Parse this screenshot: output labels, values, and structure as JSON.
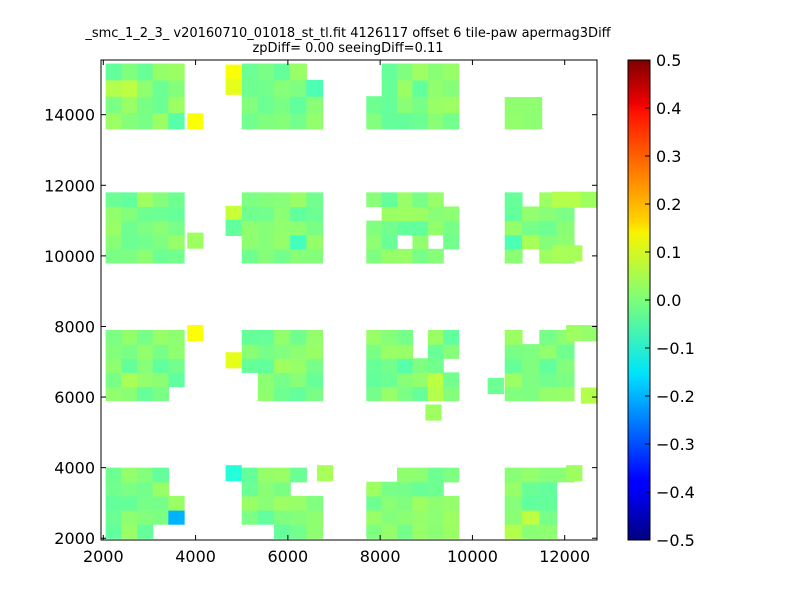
{
  "chart_data": {
    "type": "heatmap",
    "title_line1": "_smc_1_2_3_ v20160710_01018_st_tl.fit 4126117 offset 6 tile-paw apermag3Diff",
    "title_line2": "zpDiff= 0.00 seeingDiff=0.11",
    "xlabel": "",
    "ylabel": "",
    "xlim": [
      1950,
      12700
    ],
    "ylim": [
      1950,
      15550
    ],
    "xticks": [
      2000,
      4000,
      6000,
      8000,
      10000,
      12000
    ],
    "yticks": [
      2000,
      4000,
      6000,
      8000,
      10000,
      12000,
      14000
    ],
    "grid": false,
    "colorbar": {
      "min": -0.5,
      "max": 0.5,
      "ticks": [
        "0.5",
        "0.4",
        "0.3",
        "0.2",
        "0.1",
        "0.0",
        "−0.1",
        "−0.2",
        "−0.3",
        "−0.4",
        "−0.5"
      ],
      "colormap": "jet"
    },
    "cell_size": [
      340,
      440
    ],
    "default_value": 0.0,
    "blocks": [
      {
        "x": [
          2050,
          3750
        ],
        "y": [
          2000,
          4000
        ]
      },
      {
        "x": [
          5000,
          6750
        ],
        "y": [
          2000,
          4000
        ]
      },
      {
        "x": [
          7700,
          9700
        ],
        "y": [
          2000,
          4000
        ]
      },
      {
        "x": [
          10700,
          12200
        ],
        "y": [
          2000,
          4000
        ]
      },
      {
        "x": [
          2050,
          3750
        ],
        "y": [
          5900,
          7900
        ]
      },
      {
        "x": [
          5000,
          6750
        ],
        "y": [
          5900,
          7900
        ]
      },
      {
        "x": [
          7700,
          9700
        ],
        "y": [
          5900,
          7900
        ]
      },
      {
        "x": [
          10700,
          12200
        ],
        "y": [
          5900,
          7900
        ]
      },
      {
        "x": [
          2050,
          3750
        ],
        "y": [
          9800,
          11800
        ]
      },
      {
        "x": [
          5000,
          6750
        ],
        "y": [
          9800,
          11800
        ]
      },
      {
        "x": [
          7700,
          9700
        ],
        "y": [
          9800,
          11800
        ]
      },
      {
        "x": [
          10700,
          12200
        ],
        "y": [
          9800,
          11800
        ]
      },
      {
        "x": [
          2050,
          3750
        ],
        "y": [
          13600,
          15450
        ]
      },
      {
        "x": [
          5000,
          6750
        ],
        "y": [
          13600,
          15450
        ]
      },
      {
        "x": [
          7700,
          9700
        ],
        "y": [
          13600,
          15450
        ]
      },
      {
        "x": [
          10700,
          11500
        ],
        "y": [
          13600,
          14500
        ]
      }
    ],
    "extra_cells": [
      {
        "x": 3990,
        "y": 13820,
        "v": 0.12
      },
      {
        "x": 4820,
        "y": 15200,
        "v": 0.12
      },
      {
        "x": 4820,
        "y": 14800,
        "v": 0.1
      },
      {
        "x": 4820,
        "y": 11200,
        "v": 0.07
      },
      {
        "x": 4820,
        "y": 10800,
        "v": -0.03
      },
      {
        "x": 3990,
        "y": 10440,
        "v": 0.03
      },
      {
        "x": 3990,
        "y": 7820,
        "v": 0.12
      },
      {
        "x": 4820,
        "y": 7050,
        "v": 0.1
      },
      {
        "x": 9150,
        "y": 5570,
        "v": 0.03
      },
      {
        "x": 10500,
        "y": 6320,
        "v": -0.02
      },
      {
        "x": 12520,
        "y": 6050,
        "v": 0.05
      },
      {
        "x": 12200,
        "y": 11600,
        "v": 0.05
      },
      {
        "x": 11900,
        "y": 10080,
        "v": 0.04
      },
      {
        "x": 12200,
        "y": 10080,
        "v": 0.04
      },
      {
        "x": 12520,
        "y": 11600,
        "v": 0.03
      },
      {
        "x": 11900,
        "y": 11600,
        "v": 0.05
      },
      {
        "x": 12200,
        "y": 7820,
        "v": 0.03
      },
      {
        "x": 12520,
        "y": 7820,
        "v": 0.02
      },
      {
        "x": 4820,
        "y": 3850,
        "v": -0.09
      },
      {
        "x": 6800,
        "y": 3850,
        "v": 0.04
      },
      {
        "x": 12200,
        "y": 3850,
        "v": 0.03
      }
    ],
    "highlights": [
      {
        "x": 3650,
        "y": 2630,
        "v": -0.2
      },
      {
        "x": 9850,
        "y": 2150,
        "v": 0.12
      },
      {
        "x": 6850,
        "y": 15000,
        "v": 0.13
      },
      {
        "x": 6550,
        "y": 14580,
        "v": -0.05
      },
      {
        "x": 9850,
        "y": 15350,
        "v": 0.08
      },
      {
        "x": 9850,
        "y": 3850,
        "v": 0.09
      },
      {
        "x": 6900,
        "y": 11650,
        "v": -0.07
      },
      {
        "x": 6150,
        "y": 10400,
        "v": -0.06
      },
      {
        "x": 11150,
        "y": 10400,
        "v": 0.04
      },
      {
        "x": 11450,
        "y": 3000,
        "v": 0.07
      },
      {
        "x": 11150,
        "y": 2630,
        "v": 0.06
      },
      {
        "x": 10850,
        "y": 2150,
        "v": 0.05
      },
      {
        "x": 10850,
        "y": 10400,
        "v": -0.05
      },
      {
        "x": 2550,
        "y": 14800,
        "v": 0.06
      },
      {
        "x": 2250,
        "y": 14800,
        "v": 0.05
      },
      {
        "x": 3550,
        "y": 13820,
        "v": -0.04
      },
      {
        "x": 2550,
        "y": 6500,
        "v": 0.04
      },
      {
        "x": 9300,
        "y": 6500,
        "v": 0.06
      },
      {
        "x": 9300,
        "y": 6050,
        "v": 0.05
      },
      {
        "x": 8500,
        "y": 7050,
        "v": -0.04
      },
      {
        "x": 3550,
        "y": 6050,
        "v": -0.04
      }
    ],
    "holes": [
      {
        "x": 6850,
        "y": 14580
      },
      {
        "x": 6850,
        "y": 15350
      },
      {
        "x": 6550,
        "y": 15350
      },
      {
        "x": 8000,
        "y": 14580
      },
      {
        "x": 8000,
        "y": 15000
      },
      {
        "x": 9250,
        "y": 10400
      },
      {
        "x": 8600,
        "y": 10400
      },
      {
        "x": 9450,
        "y": 10080
      },
      {
        "x": 9550,
        "y": 11650
      },
      {
        "x": 7900,
        "y": 11150
      },
      {
        "x": 11150,
        "y": 11600
      },
      {
        "x": 11450,
        "y": 11600
      },
      {
        "x": 11450,
        "y": 11150
      },
      {
        "x": 11450,
        "y": 10700
      },
      {
        "x": 11150,
        "y": 10080
      },
      {
        "x": 8850,
        "y": 7650
      },
      {
        "x": 8850,
        "y": 7200
      },
      {
        "x": 9550,
        "y": 7050
      },
      {
        "x": 11150,
        "y": 7650
      },
      {
        "x": 11450,
        "y": 7650
      },
      {
        "x": 5150,
        "y": 6050
      },
      {
        "x": 5150,
        "y": 6500
      },
      {
        "x": 3750,
        "y": 6050
      },
      {
        "x": 6500,
        "y": 3850
      },
      {
        "x": 6500,
        "y": 3450
      },
      {
        "x": 6300,
        "y": 3450
      },
      {
        "x": 8000,
        "y": 3850
      },
      {
        "x": 8300,
        "y": 3850
      },
      {
        "x": 9550,
        "y": 3450
      },
      {
        "x": 3150,
        "y": 2150
      },
      {
        "x": 3450,
        "y": 2150
      },
      {
        "x": 3750,
        "y": 3850
      },
      {
        "x": 3750,
        "y": 3450
      },
      {
        "x": 5150,
        "y": 2150
      },
      {
        "x": 5450,
        "y": 2150
      },
      {
        "x": 11850,
        "y": 2150
      },
      {
        "x": 11850,
        "y": 2630
      },
      {
        "x": 12150,
        "y": 2630
      },
      {
        "x": 12150,
        "y": 3000
      },
      {
        "x": 12150,
        "y": 3450
      }
    ]
  }
}
